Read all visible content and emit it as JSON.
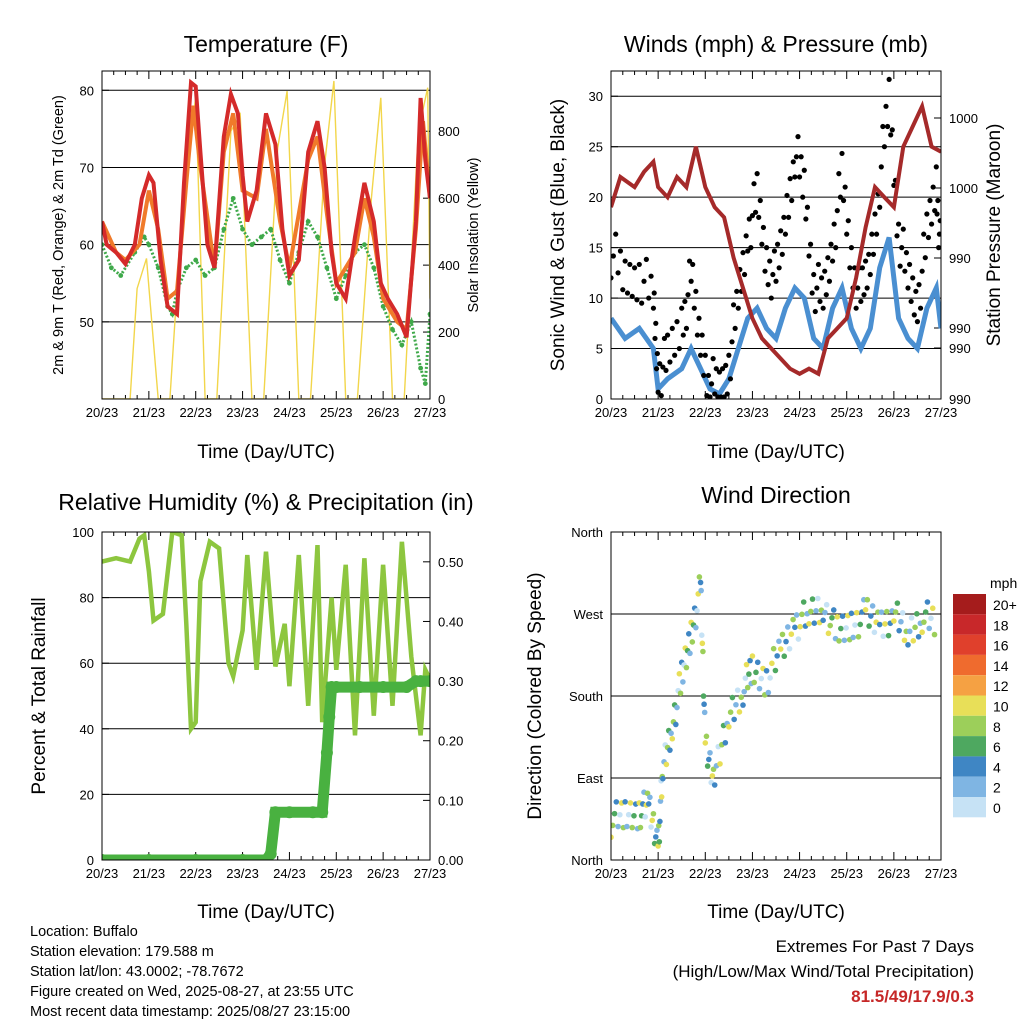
{
  "chart_data": [
    {
      "type": "line",
      "title": "Temperature (F)",
      "xlabel": "Time (Day/UTC)",
      "ylabel": "2m & 9m T (Red, Orange) & 2m Td (Green)",
      "ylabel_right": "Solar Insolation (Yellow)",
      "x_ticks": [
        "20/23",
        "21/23",
        "22/23",
        "23/23",
        "24/23",
        "25/23",
        "26/23",
        "27/23"
      ],
      "y_ticks": [
        "50",
        "60",
        "70",
        "80"
      ],
      "y2_ticks": [
        "0",
        "200",
        "400",
        "600",
        "800"
      ],
      "ylim": [
        40,
        82.5
      ],
      "y2lim": [
        0,
        980
      ],
      "series": [
        {
          "color": "#d42a2a",
          "x": [
            0,
            0.1,
            0.3,
            0.5,
            0.7,
            0.85,
            1.0,
            1.1,
            1.25,
            1.4,
            1.6,
            1.75,
            1.9,
            2.0,
            2.1,
            2.25,
            2.4,
            2.6,
            2.75,
            2.9,
            3.0,
            3.1,
            3.3,
            3.5,
            3.7,
            3.85,
            4.0,
            4.2,
            4.4,
            4.6,
            4.75,
            4.9,
            5.0,
            5.2,
            5.4,
            5.6,
            5.8,
            5.95,
            6.1,
            6.3,
            6.5,
            6.7,
            6.8,
            6.9,
            7.0
          ],
          "values": [
            63,
            60,
            59,
            57.5,
            60,
            66,
            69,
            68,
            58,
            52,
            51,
            68,
            81,
            80.5,
            72,
            60,
            57,
            74,
            79.5,
            77,
            69,
            63,
            67,
            77,
            73,
            62,
            56,
            58,
            72,
            76,
            70,
            59,
            55,
            53,
            61,
            68,
            63,
            55,
            53,
            51,
            48,
            63,
            79,
            71,
            66
          ]
        },
        {
          "color": "#f07a2a",
          "x": [
            0,
            0.3,
            0.5,
            0.8,
            1.0,
            1.2,
            1.4,
            1.6,
            1.8,
            1.95,
            2.1,
            2.4,
            2.6,
            2.8,
            3.0,
            3.3,
            3.5,
            3.8,
            4.0,
            4.4,
            4.6,
            4.8,
            5.0,
            5.4,
            5.6,
            5.8,
            6.0,
            6.3,
            6.5,
            6.7,
            6.85,
            7.0
          ],
          "values": [
            63,
            59,
            58,
            60,
            67,
            62,
            53,
            54,
            68,
            78,
            70,
            57,
            72,
            77,
            67,
            66,
            75,
            63,
            57,
            71,
            74,
            64,
            55,
            59,
            66,
            61,
            53,
            50,
            49,
            62,
            76,
            66
          ]
        },
        {
          "color": "#3fa94a",
          "x": [
            0,
            0.2,
            0.4,
            0.7,
            0.9,
            1.0,
            1.2,
            1.4,
            1.5,
            1.6,
            1.8,
            2.0,
            2.2,
            2.4,
            2.6,
            2.8,
            3.0,
            3.2,
            3.4,
            3.6,
            3.8,
            4.0,
            4.2,
            4.4,
            4.6,
            4.8,
            5.0,
            5.2,
            5.4,
            5.6,
            5.8,
            6.0,
            6.2,
            6.4,
            6.6,
            6.8,
            6.9,
            7.0
          ],
          "values": [
            60,
            57,
            56,
            59,
            61,
            60,
            57,
            52,
            51,
            54,
            57,
            58,
            56,
            57,
            62,
            66,
            62,
            60,
            61,
            62,
            58,
            55,
            59,
            63,
            61,
            57,
            53,
            56,
            59,
            60,
            57,
            52,
            49,
            47,
            50,
            44,
            42,
            51
          ]
        },
        {
          "color": "#f2d64b",
          "x": [
            0,
            0.6,
            0.75,
            0.95,
            1.2,
            1.45,
            1.75,
            2.0,
            2.2,
            2.45,
            2.75,
            2.95,
            3.2,
            3.45,
            3.75,
            3.95,
            4.2,
            4.45,
            4.75,
            4.95,
            5.2,
            5.45,
            5.75,
            5.95,
            6.2,
            6.45,
            6.75,
            6.95,
            7.0
          ],
          "values": [
            0,
            0,
            330,
            420,
            0,
            0,
            650,
            900,
            0,
            0,
            800,
            850,
            0,
            0,
            750,
            920,
            0,
            0,
            700,
            950,
            0,
            0,
            600,
            900,
            0,
            0,
            800,
            930,
            300
          ]
        }
      ]
    },
    {
      "type": "scatter",
      "title": "Winds (mph) & Pressure (mb)",
      "xlabel": "Time (Day/UTC)",
      "ylabel": "Sonic Wind & Gust (Blue, Black)",
      "ylabel_right": "Station Pressure (Maroon)",
      "x_ticks": [
        "20/23",
        "21/23",
        "22/23",
        "23/23",
        "24/23",
        "25/23",
        "26/23",
        "27/23"
      ],
      "y_ticks": [
        "0",
        "5",
        "10",
        "15",
        "20",
        "25",
        "30"
      ],
      "y2_ticks": [
        "990",
        "990",
        "990",
        "990",
        "1000",
        "1000"
      ],
      "ylim": [
        0,
        32.5
      ],
      "series": [
        {
          "color": "#4a8fd1",
          "x": [
            0,
            0.3,
            0.6,
            0.9,
            1.0,
            1.2,
            1.5,
            1.7,
            1.9,
            2.1,
            2.3,
            2.5,
            2.7,
            2.9,
            3.1,
            3.3,
            3.5,
            3.7,
            3.9,
            4.1,
            4.3,
            4.5,
            4.7,
            4.9,
            5.1,
            5.3,
            5.5,
            5.7,
            5.9,
            6.1,
            6.3,
            6.5,
            6.7,
            6.9,
            7.0
          ],
          "values": [
            8,
            6,
            7,
            5,
            1,
            2,
            3,
            5,
            3,
            1,
            0.5,
            2,
            5,
            8,
            9,
            7,
            6,
            9,
            11,
            10,
            6,
            5,
            9,
            11,
            7,
            5,
            7,
            13,
            16,
            8,
            6,
            5,
            9,
            11,
            7
          ]
        },
        {
          "color": "#000000",
          "x": [
            0,
            0.3,
            0.6,
            0.9,
            1.0,
            1.2,
            1.5,
            1.7,
            1.9,
            2.1,
            2.3,
            2.5,
            2.7,
            2.9,
            3.1,
            3.3,
            3.5,
            3.7,
            3.9,
            4.1,
            4.3,
            4.5,
            4.7,
            4.9,
            5.1,
            5.3,
            5.5,
            5.7,
            5.9,
            6.1,
            6.3,
            6.5,
            6.7,
            6.9,
            7.0
          ],
          "values": [
            15,
            12,
            13,
            10,
            3,
            4,
            8,
            12,
            6,
            2,
            1,
            4,
            10,
            17,
            20,
            14,
            12,
            18,
            25,
            21,
            12,
            10,
            16,
            22,
            14,
            10,
            14,
            22,
            30,
            17,
            12,
            10,
            16,
            22,
            14
          ]
        },
        {
          "color": "#a52a2a",
          "x": [
            0,
            0.2,
            0.5,
            0.7,
            0.9,
            1.0,
            1.2,
            1.4,
            1.6,
            1.8,
            2.0,
            2.2,
            2.4,
            2.6,
            2.8,
            3.0,
            3.2,
            3.4,
            3.6,
            3.8,
            4.0,
            4.2,
            4.4,
            4.6,
            4.8,
            5.0,
            5.2,
            5.4,
            5.6,
            5.8,
            6.0,
            6.2,
            6.4,
            6.6,
            6.8,
            7.0
          ],
          "values": [
            19,
            22,
            21,
            22.5,
            23.5,
            21,
            20,
            22,
            21,
            25,
            21,
            19,
            18,
            14,
            11,
            8,
            6,
            5,
            4,
            3,
            2.5,
            3,
            2.5,
            6,
            7,
            8,
            12,
            17,
            21,
            20,
            19,
            25,
            27,
            29,
            25,
            24.5
          ]
        }
      ]
    },
    {
      "type": "line",
      "title": "Relative Humidity (%) & Precipitation (in)",
      "xlabel": "Time (Day/UTC)",
      "ylabel": "Percent & Total Rainfall",
      "x_ticks": [
        "20/23",
        "21/23",
        "22/23",
        "23/23",
        "24/23",
        "25/23",
        "26/23",
        "27/23"
      ],
      "y_ticks": [
        "0",
        "20",
        "40",
        "60",
        "80",
        "100"
      ],
      "y2_ticks": [
        "0.00",
        "0.10",
        "0.20",
        "0.30",
        "0.40",
        "0.50"
      ],
      "ylim": [
        0,
        100
      ],
      "y2lim": [
        0,
        0.55
      ],
      "series": [
        {
          "color": "#8dc63f",
          "x": [
            0,
            0.3,
            0.6,
            0.8,
            0.9,
            1.0,
            1.1,
            1.3,
            1.5,
            1.7,
            1.8,
            1.9,
            2.0,
            2.1,
            2.3,
            2.5,
            2.7,
            2.8,
            3.0,
            3.1,
            3.3,
            3.5,
            3.7,
            3.9,
            4.0,
            4.2,
            4.4,
            4.6,
            4.7,
            4.9,
            5.0,
            5.2,
            5.4,
            5.6,
            5.8,
            6.0,
            6.2,
            6.4,
            6.6,
            6.8,
            6.9,
            7.0
          ],
          "values": [
            91,
            92,
            91,
            98,
            99,
            88,
            73,
            75,
            100,
            99,
            72,
            40,
            42,
            85,
            97,
            95,
            60,
            56,
            70,
            93,
            58,
            94,
            59,
            72,
            53,
            93,
            47,
            96,
            42,
            80,
            58,
            90,
            38,
            92,
            44,
            90,
            47,
            97,
            62,
            38,
            58,
            55
          ]
        },
        {
          "color": "#49b140",
          "x": [
            0,
            1.0,
            2.0,
            3.0,
            3.5,
            3.6,
            3.7,
            4.0,
            4.5,
            4.7,
            4.8,
            4.85,
            4.9,
            5.0,
            5.5,
            6.0,
            6.5,
            6.7,
            6.8,
            7.0
          ],
          "values": [
            0,
            0,
            0,
            0,
            0,
            0.01,
            0.08,
            0.08,
            0.08,
            0.08,
            0.18,
            0.24,
            0.29,
            0.29,
            0.29,
            0.29,
            0.29,
            0.3,
            0.3,
            0.3
          ]
        }
      ]
    },
    {
      "type": "scatter",
      "title": "Wind Direction",
      "xlabel": "Time (Day/UTC)",
      "ylabel": "Direction (Colored By Speed)",
      "x_ticks": [
        "20/23",
        "21/23",
        "22/23",
        "23/23",
        "24/23",
        "25/23",
        "26/23",
        "27/23"
      ],
      "y_ticks": [
        "North",
        "East",
        "South",
        "West",
        "North"
      ],
      "ylim": [
        0,
        360
      ],
      "legend_title": "mph",
      "legend_labels": [
        "20+",
        "18",
        "16",
        "14",
        "12",
        "10",
        "8",
        "6",
        "4",
        "2",
        "0"
      ],
      "legend_colors": [
        "#a51c1c",
        "#c8282a",
        "#e0402c",
        "#ef6b2e",
        "#f5a143",
        "#e8df58",
        "#9ccf5a",
        "#4ea860",
        "#3f86c4",
        "#7fb5e3",
        "#c6e2f5"
      ],
      "series": [
        {
          "name": "direction",
          "x": [
            0,
            0.3,
            0.6,
            0.8,
            1.0,
            1.1,
            1.3,
            1.5,
            1.7,
            1.9,
            2.0,
            2.2,
            2.5,
            2.8,
            3.0,
            3.3,
            3.6,
            3.9,
            4.2,
            4.5,
            4.8,
            5.1,
            5.4,
            5.7,
            6.0,
            6.3,
            6.6,
            6.9
          ],
          "values": [
            45,
            50,
            55,
            60,
            20,
            100,
            150,
            200,
            250,
            300,
            130,
            90,
            160,
            190,
            210,
            200,
            230,
            260,
            270,
            280,
            250,
            260,
            270,
            260,
            270,
            250,
            270,
            260
          ]
        }
      ]
    }
  ],
  "info": {
    "location": "Location: Buffalo",
    "elevation": "Station elevation: 179.588 m",
    "latlon": "Station lat/lon: 43.0002; -78.7672",
    "created": "Figure created on Wed, 2025-08-27, at 23:55 UTC",
    "recent": "Most recent data timestamp: 2025/08/27 23:15:00"
  },
  "extremes": {
    "line1": "Extremes For Past 7 Days",
    "line2": "(High/Low/Max Wind/Total Precipitation)",
    "value": "81.5/49/17.9/0.3"
  }
}
